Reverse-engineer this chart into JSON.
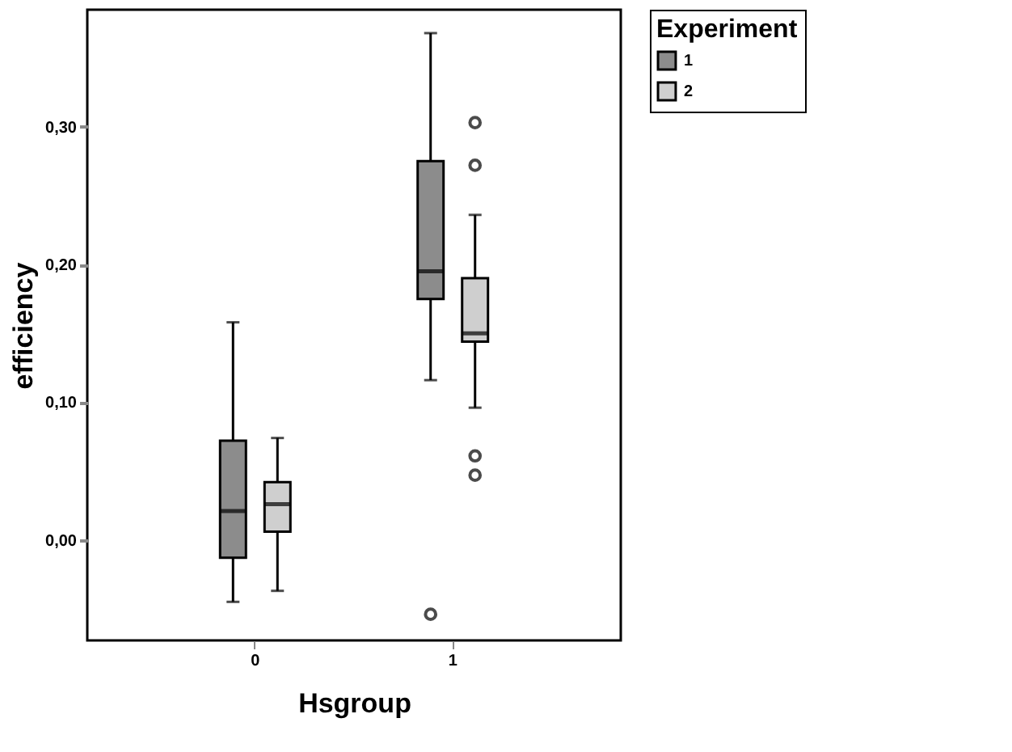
{
  "chart_data": {
    "type": "box",
    "xlabel": "Hsgroup",
    "ylabel": "efficiency",
    "legend_title": "Experiment",
    "categories": [
      "0",
      "1"
    ],
    "series": [
      {
        "name": "1",
        "color": "#8c8c8c",
        "boxes": [
          {
            "low": -0.045,
            "q1": -0.013,
            "median": 0.021,
            "q3": 0.072,
            "high": 0.158
          },
          {
            "low": 0.116,
            "q1": 0.175,
            "median": 0.195,
            "q3": 0.275,
            "high": 0.368,
            "outliers": [
              -0.054
            ]
          }
        ]
      },
      {
        "name": "2",
        "color": "#cfcfcf",
        "boxes": [
          {
            "low": -0.037,
            "q1": 0.006,
            "median": 0.026,
            "q3": 0.042,
            "high": 0.074
          },
          {
            "low": 0.096,
            "q1": 0.144,
            "median": 0.15,
            "q3": 0.19,
            "high": 0.236,
            "outliers": [
              0.303,
              0.272,
              0.061,
              0.047
            ]
          }
        ]
      }
    ],
    "ylim": [
      -0.073,
      0.385
    ],
    "yticks": [
      {
        "value": 0.0,
        "label": "0,00"
      },
      {
        "value": 0.1,
        "label": "0,10"
      },
      {
        "value": 0.2,
        "label": "0,20"
      },
      {
        "value": 0.3,
        "label": "0,30"
      }
    ],
    "grid": false,
    "legend": "top right"
  }
}
